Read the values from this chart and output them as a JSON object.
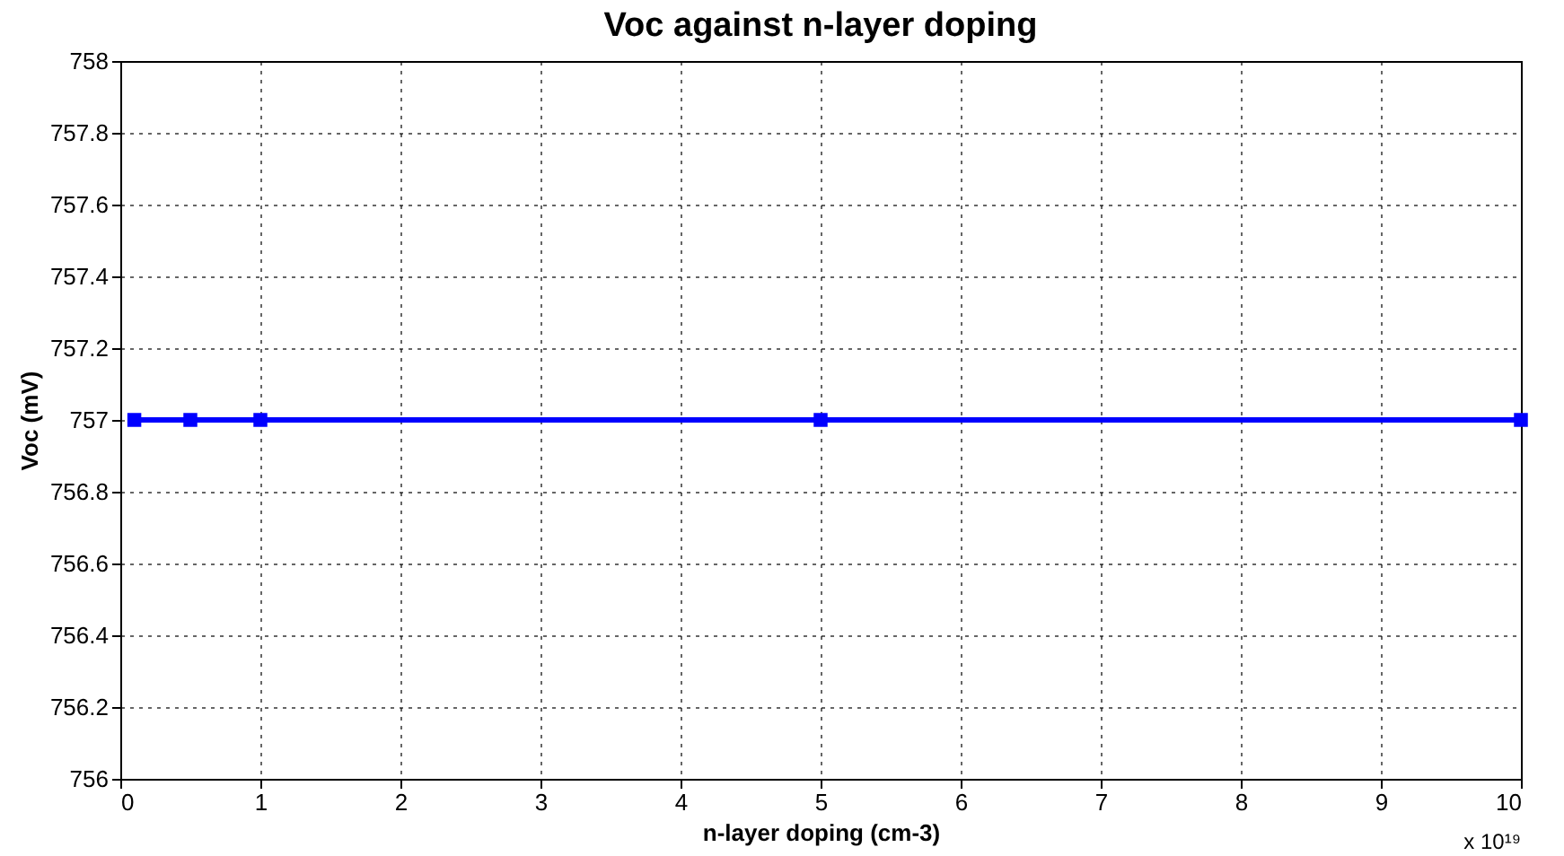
{
  "chart_data": {
    "type": "line",
    "title": "Voc against n-layer doping",
    "xlabel": "n-layer doping (cm-3)",
    "ylabel": "Voc (mV)",
    "x": [
      0.1,
      0.5,
      1,
      5,
      10
    ],
    "series": [
      {
        "color": "#0000ff",
        "values": [
          757,
          757,
          757,
          757,
          757
        ]
      }
    ],
    "xlim": [
      0,
      10
    ],
    "xticks": [
      0,
      1,
      2,
      3,
      4,
      5,
      6,
      7,
      8,
      9,
      10
    ],
    "ylim": [
      756,
      758
    ],
    "yticks": [
      756,
      756.2,
      756.4,
      756.6,
      756.8,
      757,
      757.2,
      757.4,
      757.6,
      757.8,
      758
    ],
    "grid": true,
    "marker": "square",
    "line_style": "solid",
    "annotations": [
      "x 10¹⁹"
    ]
  }
}
